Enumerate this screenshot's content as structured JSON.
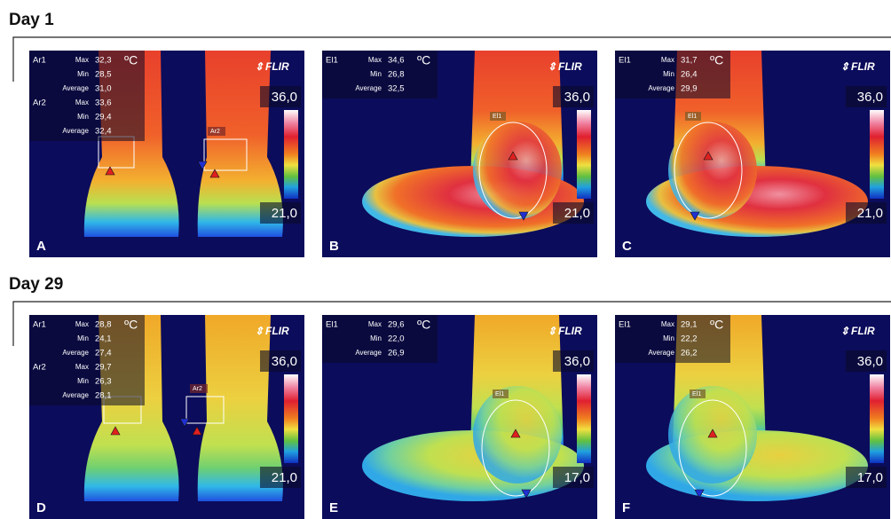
{
  "sections": [
    {
      "title": "Day 1",
      "panels": [
        {
          "letter": "A",
          "unit": "ºC",
          "brand": "FLIR",
          "scale_max": "36,0",
          "scale_min": "21,0",
          "roi_labels": [
            "Ar2"
          ],
          "measurements": [
            {
              "name": "Ar1",
              "rows": [
                {
                  "label": "Max",
                  "value": "32,3"
                },
                {
                  "label": "Min",
                  "value": "28,5"
                },
                {
                  "label": "Average",
                  "value": "31,0"
                }
              ]
            },
            {
              "name": "Ar2",
              "rows": [
                {
                  "label": "Max",
                  "value": "33,6"
                },
                {
                  "label": "Min",
                  "value": "29,4"
                },
                {
                  "label": "Average",
                  "value": "32,4"
                }
              ]
            }
          ]
        },
        {
          "letter": "B",
          "unit": "ºC",
          "brand": "FLIR",
          "scale_max": "36,0",
          "scale_min": "21,0",
          "roi_labels": [
            "El1"
          ],
          "measurements": [
            {
              "name": "El1",
              "rows": [
                {
                  "label": "Max",
                  "value": "34,6"
                },
                {
                  "label": "Min",
                  "value": "26,8"
                },
                {
                  "label": "Average",
                  "value": "32,5"
                }
              ]
            }
          ]
        },
        {
          "letter": "C",
          "unit": "ºC",
          "brand": "FLIR",
          "scale_max": "36,0",
          "scale_min": "21,0",
          "roi_labels": [
            "El1"
          ],
          "measurements": [
            {
              "name": "El1",
              "rows": [
                {
                  "label": "Max",
                  "value": "31,7"
                },
                {
                  "label": "Min",
                  "value": "26,4"
                },
                {
                  "label": "Average",
                  "value": "29,9"
                }
              ]
            }
          ]
        }
      ]
    },
    {
      "title": "Day 29",
      "panels": [
        {
          "letter": "D",
          "unit": "ºC",
          "brand": "FLIR",
          "scale_max": "36,0",
          "scale_min": "21,0",
          "roi_labels": [
            "Ar2"
          ],
          "measurements": [
            {
              "name": "Ar1",
              "rows": [
                {
                  "label": "Max",
                  "value": "28,8"
                },
                {
                  "label": "Min",
                  "value": "24,1"
                },
                {
                  "label": "Average",
                  "value": "27,4"
                }
              ]
            },
            {
              "name": "Ar2",
              "rows": [
                {
                  "label": "Max",
                  "value": "29,7"
                },
                {
                  "label": "Min",
                  "value": "26,3"
                },
                {
                  "label": "Average",
                  "value": "28,1"
                }
              ]
            }
          ]
        },
        {
          "letter": "E",
          "unit": "ºC",
          "brand": "FLIR",
          "scale_max": "36,0",
          "scale_min": "17,0",
          "roi_labels": [
            "El1"
          ],
          "measurements": [
            {
              "name": "El1",
              "rows": [
                {
                  "label": "Max",
                  "value": "29,6"
                },
                {
                  "label": "Min",
                  "value": "22,0"
                },
                {
                  "label": "Average",
                  "value": "26,9"
                }
              ]
            }
          ]
        },
        {
          "letter": "F",
          "unit": "ºC",
          "brand": "FLIR",
          "scale_max": "36,0",
          "scale_min": "17,0",
          "roi_labels": [
            "El1"
          ],
          "measurements": [
            {
              "name": "El1",
              "rows": [
                {
                  "label": "Max",
                  "value": "29,1"
                },
                {
                  "label": "Min",
                  "value": "22,2"
                },
                {
                  "label": "Average",
                  "value": "26,2"
                }
              ]
            }
          ]
        }
      ]
    }
  ]
}
